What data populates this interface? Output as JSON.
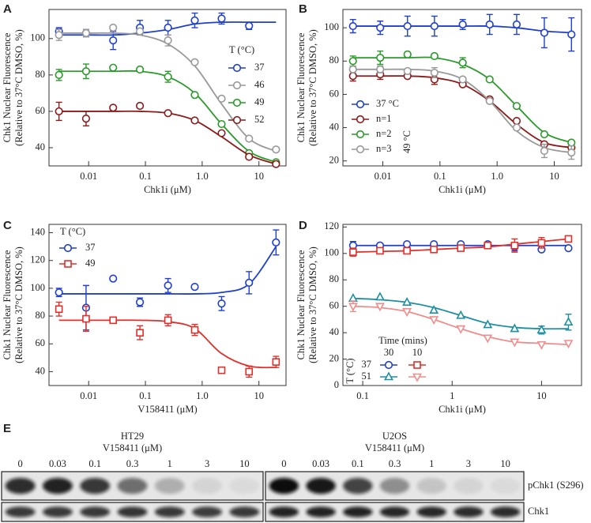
{
  "chart_data": [
    {
      "type": "scatter",
      "panel": "A",
      "xlog": true,
      "xlabel": "Chk1i (μM)",
      "ylabel": [
        "Chk1 Nuclear Fluorescence",
        "(Relative to 37°C DMSO, %)"
      ],
      "xlim": [
        0.002,
        30
      ],
      "xticks": [
        0.01,
        0.1,
        {
          "value": 1,
          "label": "1.0"
        },
        10
      ],
      "ylim": [
        30,
        116
      ],
      "yticks": [
        40,
        60,
        80,
        100
      ],
      "legend_title": "T (°C)",
      "series": [
        {
          "name": "37",
          "color": "#1f3fcf",
          "marker": "circle",
          "x": [
            0.003,
            0.009,
            0.027,
            0.08,
            0.25,
            0.74,
            2.2,
            6.7,
            20
          ],
          "values": [
            104,
            103,
            99,
            106,
            106,
            110,
            111,
            107,
            null
          ],
          "errors": [
            2,
            2,
            5,
            4,
            4,
            4,
            3,
            2,
            null
          ],
          "fit": [
            102,
            102,
            102,
            103,
            105,
            108,
            109,
            109,
            109
          ]
        },
        {
          "name": "46",
          "color": "#999999",
          "marker": "circle",
          "x": [
            0.003,
            0.009,
            0.027,
            0.08,
            0.25,
            0.74,
            2.2,
            6.7,
            20
          ],
          "values": [
            102,
            103,
            106,
            104,
            99,
            87,
            67,
            45,
            39
          ],
          "errors": [
            3,
            2,
            null,
            null,
            3,
            null,
            null,
            null,
            null
          ],
          "fit": [
            103,
            103,
            103,
            102,
            97,
            85,
            64,
            45,
            38
          ]
        },
        {
          "name": "49",
          "color": "#2a9a2a",
          "marker": "circle",
          "x": [
            0.003,
            0.009,
            0.027,
            0.08,
            0.25,
            0.74,
            2.2,
            6.7,
            20
          ],
          "values": [
            80,
            82,
            84,
            83,
            79,
            69,
            53,
            37,
            32
          ],
          "errors": [
            3,
            4,
            null,
            null,
            3,
            null,
            null,
            null,
            null
          ],
          "fit": [
            82,
            82,
            82,
            82,
            79,
            70,
            53,
            38,
            32
          ]
        },
        {
          "name": "52",
          "color": "#8b1a1a",
          "marker": "circle",
          "x": [
            0.003,
            0.009,
            0.027,
            0.08,
            0.25,
            0.74,
            2.2,
            6.7,
            20
          ],
          "values": [
            60,
            56,
            62,
            63,
            59,
            55,
            48,
            35,
            31
          ],
          "errors": [
            5,
            4,
            null,
            null,
            null,
            null,
            null,
            null,
            null
          ],
          "fit": [
            60,
            60,
            60,
            60,
            59,
            55,
            46,
            36,
            31
          ]
        }
      ]
    },
    {
      "type": "scatter",
      "panel": "B",
      "xlog": true,
      "xlabel": "Chk1i (μM)",
      "ylabel": [
        "Chk1 Nuclear Fluorescence",
        "(Relative to 37°C DMSO, %)"
      ],
      "xlim": [
        0.002,
        30
      ],
      "xticks": [
        0.01,
        0.1,
        {
          "value": 1,
          "label": "1.0"
        },
        10
      ],
      "ylim": [
        17,
        111
      ],
      "yticks": [
        20,
        40,
        60,
        80,
        100
      ],
      "annotation": "49 °C",
      "series": [
        {
          "name": "37 °C",
          "color": "#1f3fcf",
          "marker": "circle",
          "x": [
            0.003,
            0.009,
            0.027,
            0.08,
            0.25,
            0.74,
            2.2,
            6.7,
            20
          ],
          "values": [
            101,
            100,
            101,
            101,
            102,
            102,
            102,
            97,
            96
          ],
          "errors": [
            4,
            4,
            6,
            6,
            3,
            6,
            6,
            9,
            10
          ],
          "fit": [
            101,
            101,
            101,
            101,
            101,
            101,
            100,
            98,
            97
          ]
        },
        {
          "name": "n=1",
          "color": "#8b1a1a",
          "marker": "circle",
          "x": [
            0.003,
            0.009,
            0.027,
            0.08,
            0.25,
            0.74,
            2.2,
            6.7,
            20
          ],
          "values": [
            71,
            72,
            71,
            69,
            66,
            57,
            44,
            30,
            28
          ],
          "errors": [
            3,
            3,
            null,
            3,
            null,
            null,
            null,
            null,
            null
          ],
          "fit": [
            71,
            71,
            71,
            70,
            66,
            56,
            42,
            31,
            28
          ]
        },
        {
          "name": "n=2",
          "color": "#2a9a2a",
          "marker": "circle",
          "x": [
            0.003,
            0.009,
            0.027,
            0.08,
            0.25,
            0.74,
            2.2,
            6.7,
            20
          ],
          "values": [
            80,
            82,
            84,
            83,
            79,
            69,
            53,
            36,
            31
          ],
          "errors": [
            3,
            4,
            null,
            null,
            3,
            null,
            null,
            null,
            null
          ],
          "fit": [
            82,
            82,
            82,
            82,
            78,
            69,
            53,
            37,
            31
          ]
        },
        {
          "name": "n=3",
          "color": "#999999",
          "marker": "circle",
          "x": [
            0.003,
            0.009,
            0.027,
            0.08,
            0.25,
            0.74,
            2.2,
            6.7,
            20
          ],
          "values": [
            75,
            75,
            74,
            73,
            69,
            56,
            40,
            26,
            25
          ],
          "errors": [
            2,
            2,
            null,
            3,
            null,
            null,
            null,
            4,
            4
          ],
          "fit": [
            75,
            75,
            75,
            74,
            69,
            56,
            38,
            28,
            25
          ]
        }
      ]
    },
    {
      "type": "scatter",
      "panel": "C",
      "xlog": true,
      "xlabel": "V158411 (μM)",
      "ylabel": [
        "Chk1 Nuclear Fluorescence",
        "(Relative to 37°C DMSO, %)"
      ],
      "xlim": [
        0.002,
        30
      ],
      "xticks": [
        0.01,
        0.1,
        {
          "value": 1,
          "label": "1.0"
        },
        10
      ],
      "ylim": [
        30,
        146
      ],
      "yticks": [
        40,
        60,
        80,
        100,
        120,
        140
      ],
      "legend_title": "T (°C)",
      "series": [
        {
          "name": "37",
          "color": "#1f3fcf",
          "marker": "circle",
          "x": [
            0.003,
            0.009,
            0.027,
            0.08,
            0.25,
            0.74,
            2.2,
            6.7,
            20
          ],
          "values": [
            97,
            86,
            107,
            90,
            102,
            101,
            89,
            104,
            133
          ],
          "errors": [
            3,
            16,
            null,
            3,
            5,
            null,
            5,
            8,
            9
          ],
          "fit": [
            96,
            96,
            96,
            96,
            96,
            96,
            97,
            103,
            130
          ]
        },
        {
          "name": "49",
          "color": "#e0302a",
          "marker": "square",
          "x": [
            0.003,
            0.009,
            0.027,
            0.08,
            0.25,
            0.74,
            2.2,
            6.7,
            20
          ],
          "values": [
            85,
            78,
            77,
            68,
            77,
            70,
            41,
            40,
            47
          ],
          "errors": [
            5,
            9,
            null,
            5,
            4,
            4,
            null,
            4,
            4
          ],
          "fit": [
            77,
            77,
            77,
            77,
            76,
            71,
            53,
            44,
            43
          ]
        }
      ]
    },
    {
      "type": "scatter",
      "panel": "D",
      "xlog": true,
      "xlabel": "Chk1i (μM)",
      "ylabel": [
        "Chk1 Nuclear Fluorescence",
        "(Relative to 37°C DMSO, %)"
      ],
      "xlim": [
        0.06,
        28
      ],
      "xticks": [
        0.1,
        1,
        10
      ],
      "ylim": [
        0,
        122
      ],
      "yticks": [
        0,
        20,
        40,
        60,
        80,
        100,
        120
      ],
      "legend_grid": {
        "title": "Time (mins)",
        "columns": [
          "30",
          "10"
        ],
        "rows": [
          "37",
          "51"
        ],
        "row_title": "T (°C)"
      },
      "series": [
        {
          "color": "#1f3fcf",
          "marker": "circle",
          "x": [
            0.078,
            0.156,
            0.3125,
            0.625,
            1.25,
            2.5,
            5,
            10,
            20
          ],
          "values": [
            106,
            106,
            107,
            107,
            107,
            107,
            105,
            103,
            104
          ],
          "errors": [
            3,
            null,
            null,
            null,
            null,
            null,
            3,
            null,
            null
          ],
          "fit": [
            106,
            106,
            106,
            106,
            106,
            106,
            106,
            106,
            106
          ]
        },
        {
          "color": "#e0302a",
          "marker": "square",
          "x": [
            0.078,
            0.156,
            0.3125,
            0.625,
            1.25,
            2.5,
            5,
            10,
            20
          ],
          "values": [
            101,
            102,
            102,
            103,
            104,
            106,
            106,
            108,
            111
          ],
          "errors": [
            3,
            null,
            null,
            null,
            null,
            null,
            5,
            4,
            null
          ],
          "fit": [
            101,
            101.5,
            102,
            103,
            104,
            105,
            107,
            109,
            111
          ]
        },
        {
          "color": "#1e8fa0",
          "marker": "triangle",
          "x": [
            0.078,
            0.156,
            0.3125,
            0.625,
            1.25,
            2.5,
            5,
            10,
            20
          ],
          "values": [
            66,
            67,
            63,
            57,
            53,
            46,
            43,
            42,
            48
          ],
          "errors": [
            null,
            null,
            null,
            null,
            null,
            null,
            null,
            3,
            6
          ],
          "fit": [
            66,
            65,
            63,
            59,
            53,
            47,
            44,
            43,
            43
          ]
        },
        {
          "color": "#f08c8c",
          "marker": "triangle-down",
          "x": [
            0.078,
            0.156,
            0.3125,
            0.625,
            1.25,
            2.5,
            5,
            10,
            20
          ],
          "values": [
            60,
            60,
            56,
            50,
            43,
            36,
            33,
            31,
            32
          ],
          "errors": [
            4,
            null,
            null,
            null,
            null,
            null,
            null,
            null,
            null
          ],
          "fit": [
            60,
            59,
            56,
            50,
            43,
            37,
            33,
            32,
            31
          ]
        }
      ]
    }
  ],
  "blot": {
    "panel": "E",
    "rows": [
      "pChk1 (S296)",
      "Chk1"
    ],
    "groups": [
      {
        "cell_line": "HT29",
        "treatment": "V158411 (μM)",
        "concentrations": [
          "0",
          "0.03",
          "0.1",
          "0.3",
          "1",
          "3",
          "10"
        ]
      },
      {
        "cell_line": "U2OS",
        "treatment": "V158411 (μM)",
        "concentrations": [
          "0",
          "0.03",
          "0.1",
          "0.3",
          "1",
          "3",
          "10"
        ]
      }
    ]
  }
}
